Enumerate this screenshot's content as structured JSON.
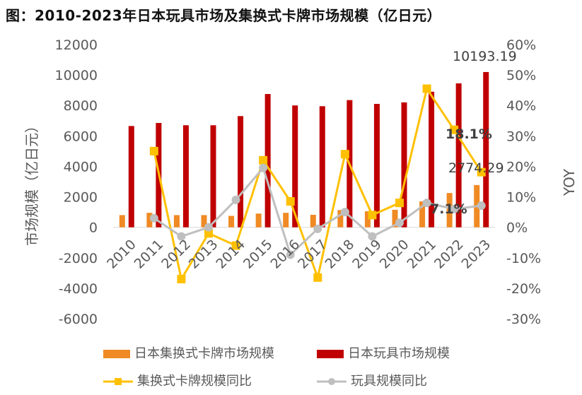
{
  "title": "图：2010-2023年日本玩具市场及集换式卡牌市场规模（亿日元）",
  "chart_data": {
    "type": "bar+line",
    "categories": [
      "2010",
      "2011",
      "2012",
      "2013",
      "2014",
      "2015",
      "2016",
      "2017",
      "2018",
      "2019",
      "2020",
      "2021",
      "2022",
      "2023"
    ],
    "series": [
      {
        "name": "日本集换式卡牌市场规模",
        "type": "bar",
        "axis": "left",
        "color": "#F08A24",
        "values": [
          800,
          950,
          800,
          800,
          750,
          900,
          950,
          820,
          1130,
          1050,
          1150,
          1700,
          2250,
          2774.29
        ]
      },
      {
        "name": "日本玩具市场规模",
        "type": "bar",
        "axis": "left",
        "color": "#C00000",
        "values": [
          6650,
          6850,
          6700,
          6700,
          7300,
          8750,
          8000,
          7950,
          8350,
          8100,
          8200,
          8900,
          9450,
          10193.19
        ]
      },
      {
        "name": "集换式卡牌规模同比",
        "type": "line",
        "axis": "right",
        "color": "#FFC000",
        "values": [
          null,
          25.0,
          -17.0,
          -2.0,
          -6.0,
          22.0,
          8.5,
          -16.5,
          24.0,
          4.0,
          8.0,
          45.5,
          32.0,
          18.1
        ]
      },
      {
        "name": "玩具规模同比",
        "type": "line",
        "axis": "right",
        "color": "#BFBFBF",
        "values": [
          null,
          3.0,
          -3.0,
          0.0,
          9.0,
          19.5,
          -9.0,
          -0.5,
          5.0,
          -3.0,
          1.5,
          8.0,
          6.0,
          7.1
        ]
      }
    ],
    "ylabel": "市场规模（亿日元）",
    "ylabel_right": "YOY",
    "ylim": [
      -6000,
      12000
    ],
    "yticks": [
      "12000",
      "10000",
      "8000",
      "6000",
      "4000",
      "2000",
      "0",
      "-2000",
      "-4000",
      "-6000"
    ],
    "ylim_right": [
      -30,
      60
    ],
    "yticks_right": [
      "60%",
      "50%",
      "40%",
      "30%",
      "20%",
      "10%",
      "0%",
      "-10%",
      "-20%",
      "-30%"
    ],
    "annotations": [
      {
        "text": "10193.19",
        "series": "日本玩具市场规模",
        "category": "2023"
      },
      {
        "text": "18.1%",
        "series": "集换式卡牌规模同比",
        "category": "2023"
      },
      {
        "text": "2774.29",
        "series": "日本集换式卡牌市场规模",
        "category": "2023"
      },
      {
        "text": "7.1%",
        "series": "玩具规模同比",
        "category": "2023"
      }
    ]
  }
}
